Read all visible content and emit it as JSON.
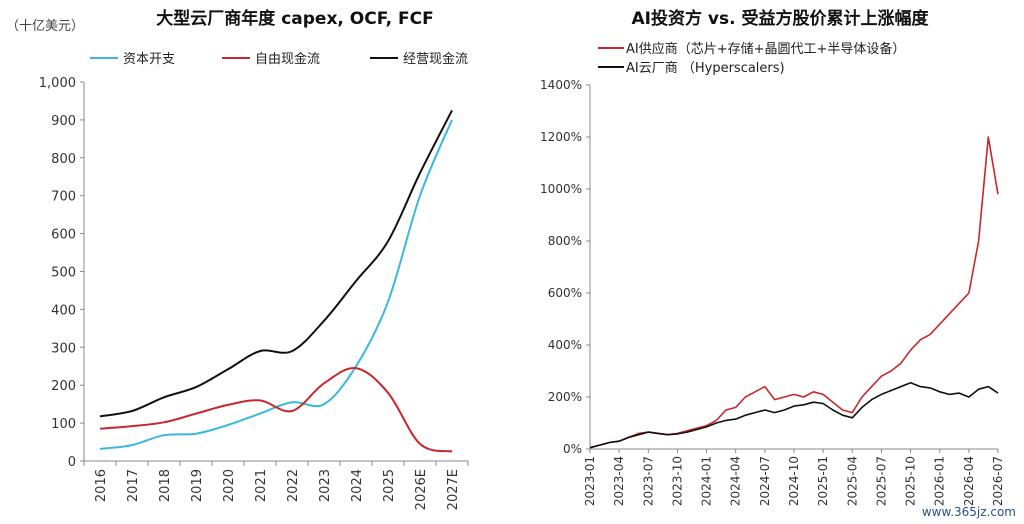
{
  "watermark": "www.365jz.com",
  "chart_data": [
    {
      "type": "line",
      "title": "大型云厂商年度 capex, OCF, FCF",
      "unit_label": "（十亿美元）",
      "categories": [
        "2016",
        "2017",
        "2018",
        "2019",
        "2020",
        "2021",
        "2022",
        "2023",
        "2024",
        "2025",
        "2026E",
        "2027E"
      ],
      "ylim": [
        0,
        1000
      ],
      "yticks": [
        "0",
        "100",
        "200",
        "300",
        "400",
        "500",
        "600",
        "700",
        "800",
        "900",
        "1,000"
      ],
      "legend_position": "top",
      "series": [
        {
          "name": "资本开支",
          "color": "#3ab8dd",
          "values": [
            32,
            42,
            68,
            72,
            95,
            125,
            155,
            150,
            250,
            420,
            700,
            900
          ]
        },
        {
          "name": "自由现金流",
          "color": "#c8282d",
          "values": [
            85,
            92,
            102,
            125,
            148,
            160,
            132,
            205,
            245,
            180,
            45,
            25
          ]
        },
        {
          "name": "经营现金流",
          "color": "#111111",
          "values": [
            118,
            132,
            168,
            195,
            242,
            290,
            290,
            370,
            475,
            580,
            760,
            925
          ]
        }
      ]
    },
    {
      "type": "line",
      "title": "AI投资方 vs. 受益方股价累计上涨幅度",
      "ylim": [
        0,
        1400
      ],
      "yticks": [
        "0%",
        "200%",
        "400%",
        "600%",
        "800%",
        "1000%",
        "1200%",
        "1400%"
      ],
      "xticks": [
        "2023-01",
        "2023-04",
        "2023-07",
        "2023-10",
        "2024-01",
        "2024-04",
        "2024-07",
        "2024-10",
        "2025-01",
        "2025-04",
        "2025-07",
        "2025-10",
        "2026-01",
        "2026-04",
        "2026-07"
      ],
      "legend_position": "top-left",
      "series": [
        {
          "name": "AI供应商（芯片+存储+晶圆代工+半导体设备）",
          "color": "#c8282d",
          "x": [
            "2023-01",
            "2023-02",
            "2023-03",
            "2023-04",
            "2023-05",
            "2023-06",
            "2023-07",
            "2023-08",
            "2023-09",
            "2023-10",
            "2023-11",
            "2023-12",
            "2024-01",
            "2024-02",
            "2024-03",
            "2024-04",
            "2024-05",
            "2024-06",
            "2024-07",
            "2024-08",
            "2024-09",
            "2024-10",
            "2024-11",
            "2024-12",
            "2025-01",
            "2025-02",
            "2025-03",
            "2025-04",
            "2025-05",
            "2025-06",
            "2025-07",
            "2025-08",
            "2025-09",
            "2025-10",
            "2025-11",
            "2025-12",
            "2026-01",
            "2026-02",
            "2026-03",
            "2026-04",
            "2026-05",
            "2026-06",
            "2026-07"
          ],
          "values": [
            5,
            15,
            25,
            30,
            45,
            60,
            65,
            60,
            55,
            60,
            70,
            80,
            90,
            110,
            150,
            160,
            200,
            220,
            240,
            190,
            200,
            210,
            200,
            220,
            210,
            180,
            150,
            140,
            200,
            240,
            280,
            300,
            330,
            380,
            420,
            440,
            480,
            520,
            560,
            600,
            800,
            1200,
            980
          ]
        },
        {
          "name": "AI云厂商 （Hyperscalers)",
          "color": "#111111",
          "x": [
            "2023-01",
            "2023-02",
            "2023-03",
            "2023-04",
            "2023-05",
            "2023-06",
            "2023-07",
            "2023-08",
            "2023-09",
            "2023-10",
            "2023-11",
            "2023-12",
            "2024-01",
            "2024-02",
            "2024-03",
            "2024-04",
            "2024-05",
            "2024-06",
            "2024-07",
            "2024-08",
            "2024-09",
            "2024-10",
            "2024-11",
            "2024-12",
            "2025-01",
            "2025-02",
            "2025-03",
            "2025-04",
            "2025-05",
            "2025-06",
            "2025-07",
            "2025-08",
            "2025-09",
            "2025-10",
            "2025-11",
            "2025-12",
            "2026-01",
            "2026-02",
            "2026-03",
            "2026-04",
            "2026-05",
            "2026-06",
            "2026-07"
          ],
          "values": [
            5,
            15,
            25,
            30,
            45,
            55,
            65,
            60,
            55,
            58,
            65,
            75,
            85,
            100,
            110,
            115,
            130,
            140,
            150,
            140,
            150,
            165,
            170,
            180,
            175,
            150,
            130,
            120,
            160,
            190,
            210,
            225,
            240,
            255,
            240,
            235,
            220,
            210,
            215,
            200,
            230,
            240,
            215
          ]
        }
      ]
    }
  ]
}
